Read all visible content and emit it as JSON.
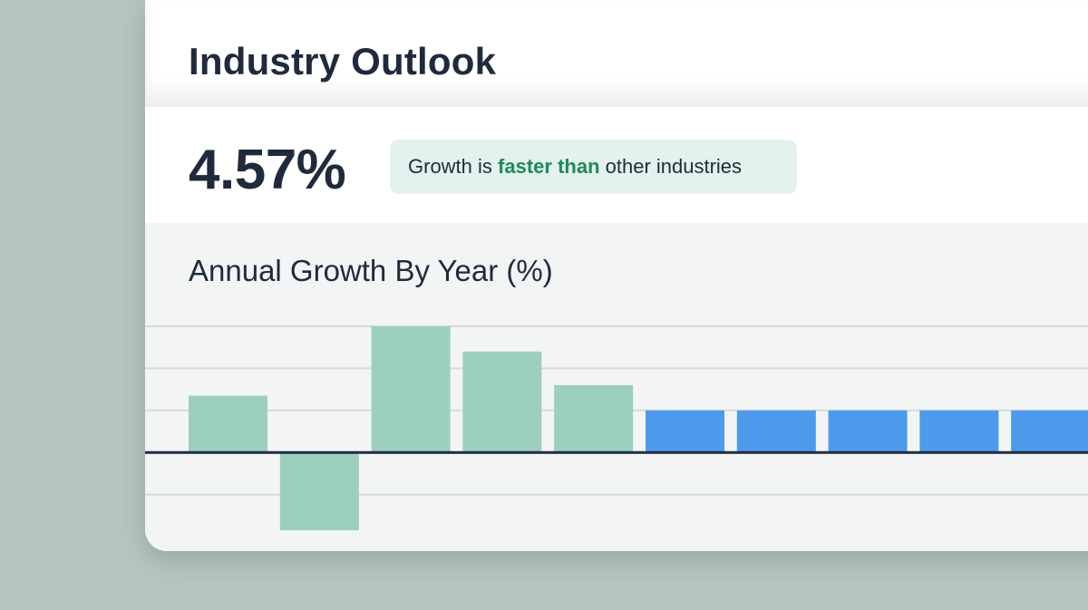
{
  "card": {
    "title": "Industry Outlook",
    "growth_value": "4.57%",
    "badge": {
      "prefix": "Growth is ",
      "emphasis": "faster than",
      "suffix": " other industries"
    },
    "chart_title": "Annual Growth By Year (%)"
  },
  "colors": {
    "historical": "#9ccfc0",
    "projected": "#4e9aec",
    "emphasis": "#1e8a5c",
    "text": "#1f2b3d"
  },
  "chart_data": {
    "type": "bar",
    "title": "Annual Growth By Year (%)",
    "xlabel": "",
    "ylabel": "",
    "grid": true,
    "ylim": [
      -2,
      3
    ],
    "series": [
      {
        "kind": "historical",
        "values": [
          1.35,
          -1.85,
          3.0,
          2.4,
          1.6,
          null,
          null,
          null,
          null,
          null
        ]
      },
      {
        "kind": "projected",
        "values": [
          null,
          null,
          null,
          null,
          null,
          1.0,
          1.0,
          1.0,
          1.0,
          1.0
        ]
      }
    ]
  }
}
